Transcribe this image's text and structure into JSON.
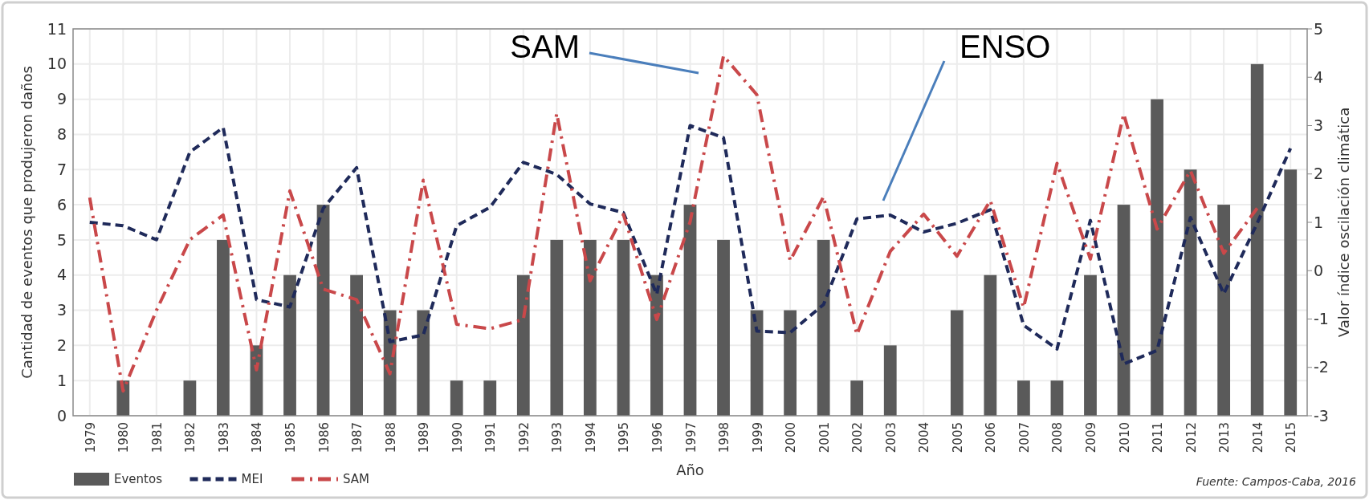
{
  "chart_data": {
    "type": "bar",
    "xlabel": "Año",
    "ylabel": "Cantidad de eventos que produjeron daños",
    "y2label": "Valor índice oscilación climática",
    "categories": [
      "1979",
      "1980",
      "1981",
      "1982",
      "1983",
      "1984",
      "1985",
      "1986",
      "1987",
      "1988",
      "1989",
      "1990",
      "1991",
      "1992",
      "1993",
      "1994",
      "1995",
      "1996",
      "1997",
      "1998",
      "1999",
      "2000",
      "2001",
      "2002",
      "2003",
      "2004",
      "2005",
      "2006",
      "2007",
      "2008",
      "2009",
      "2010",
      "2011",
      "2012",
      "2013",
      "2014",
      "2015"
    ],
    "series": [
      {
        "name": "Eventos",
        "color": "#5a5a5a",
        "values": [
          0,
          1,
          0,
          1,
          5,
          2,
          4,
          6,
          4,
          3,
          3,
          1,
          1,
          4,
          5,
          5,
          5,
          4,
          6,
          5,
          3,
          3,
          5,
          1,
          2,
          0,
          3,
          4,
          1,
          1,
          4,
          6,
          9,
          7,
          6,
          10,
          7
        ]
      },
      {
        "name": "MEI",
        "type": "line",
        "axis": "y2",
        "color": "#1f2a5a",
        "line_style": "dashed",
        "values": [
          1.0,
          0.93,
          0.64,
          2.45,
          2.96,
          -0.6,
          -0.75,
          1.29,
          2.13,
          -1.47,
          -1.33,
          0.93,
          1.31,
          2.24,
          1.99,
          1.38,
          1.2,
          -0.49,
          3.0,
          2.75,
          -1.25,
          -1.28,
          -0.7,
          1.07,
          1.15,
          0.8,
          0.98,
          1.26,
          -1.13,
          -1.62,
          1.04,
          -1.93,
          -1.65,
          1.1,
          -0.48,
          0.98,
          2.53
        ]
      },
      {
        "name": "SAM",
        "type": "line",
        "axis": "y2",
        "color": "#c9484a",
        "line_style": "dashdot",
        "values": [
          1.51,
          -2.49,
          -0.82,
          0.64,
          1.15,
          -2.05,
          1.65,
          -0.38,
          -0.6,
          -2.13,
          1.87,
          -1.11,
          -1.2,
          -1.01,
          3.25,
          -0.21,
          1.16,
          -1.01,
          1.01,
          4.44,
          3.64,
          0.21,
          1.53,
          -1.32,
          0.4,
          1.17,
          0.3,
          1.45,
          -0.76,
          2.22,
          0.24,
          3.24,
          0.86,
          2.07,
          0.36,
          1.29,
          null
        ]
      }
    ],
    "ylim": [
      0,
      11
    ],
    "yticks": [
      0,
      1,
      2,
      3,
      4,
      5,
      6,
      7,
      8,
      9,
      10,
      11
    ],
    "y2lim": [
      -3,
      5
    ],
    "y2ticks": [
      -3,
      -2,
      -1,
      0,
      1,
      2,
      3,
      4,
      5
    ],
    "grid": true,
    "legend": "bottom left",
    "annotations": [
      "SAM",
      "ENSO",
      "Fuente: Campos-Caba, 2016"
    ]
  }
}
